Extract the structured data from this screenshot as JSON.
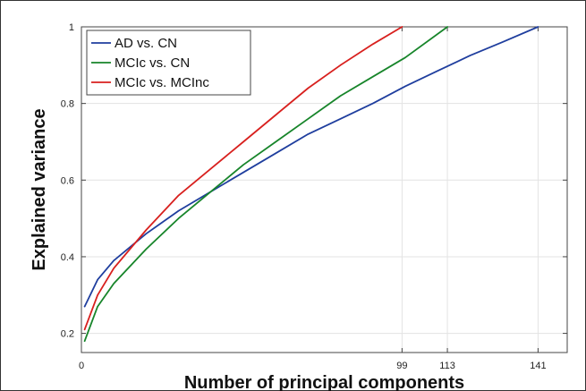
{
  "chart_data": {
    "type": "line",
    "xlabel": "Number of principal components",
    "ylabel": "Explained variance",
    "xlim": [
      0,
      150
    ],
    "ylim": [
      0.15,
      1.0
    ],
    "x_ticks": [
      0,
      99,
      113,
      141
    ],
    "y_ticks": [
      0.2,
      0.4,
      0.6,
      0.8,
      1
    ],
    "y_tick_labels": [
      "0.2",
      "0.4",
      "0.6",
      "0.8",
      "1"
    ],
    "grid": true,
    "legend_position": "top-left",
    "series": [
      {
        "name": "AD vs. CN",
        "color": "#1f3e9e",
        "x": [
          1,
          5,
          10,
          20,
          30,
          40,
          50,
          60,
          70,
          80,
          90,
          100,
          110,
          120,
          130,
          141
        ],
        "y": [
          0.27,
          0.34,
          0.39,
          0.46,
          0.52,
          0.57,
          0.62,
          0.67,
          0.72,
          0.76,
          0.8,
          0.845,
          0.885,
          0.925,
          0.96,
          1.0
        ]
      },
      {
        "name": "MCIc vs. CN",
        "color": "#17852a",
        "x": [
          1,
          5,
          10,
          20,
          30,
          40,
          50,
          60,
          70,
          80,
          90,
          100,
          113
        ],
        "y": [
          0.18,
          0.27,
          0.33,
          0.42,
          0.5,
          0.57,
          0.64,
          0.7,
          0.76,
          0.82,
          0.87,
          0.92,
          1.0
        ]
      },
      {
        "name": "MCIc vs. MCInc",
        "color": "#d8201e",
        "x": [
          1,
          5,
          10,
          20,
          30,
          40,
          50,
          60,
          70,
          80,
          90,
          99
        ],
        "y": [
          0.21,
          0.3,
          0.37,
          0.47,
          0.56,
          0.63,
          0.7,
          0.77,
          0.84,
          0.9,
          0.955,
          1.0
        ]
      }
    ]
  }
}
